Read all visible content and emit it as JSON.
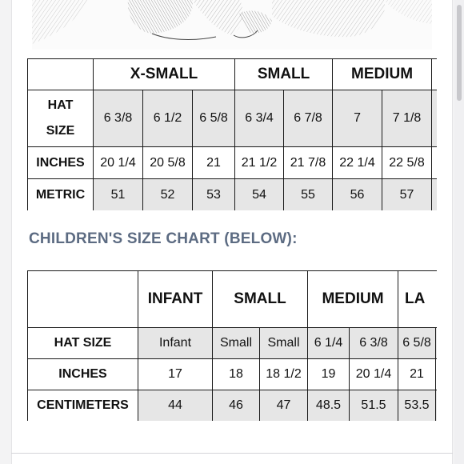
{
  "adult_chart": {
    "groups": [
      "X-SMALL",
      "SMALL",
      "MEDIUM"
    ],
    "row_labels": {
      "hat_size_line1": "HAT",
      "hat_size_line2": "SIZE",
      "inches": "INCHES",
      "metric": "METRIC"
    },
    "hat_size": [
      "6 3/8",
      "6 1/2",
      "6 5/8",
      "6 3/4",
      "6 7/8",
      "7",
      "7 1/8"
    ],
    "inches": [
      "20 1/4",
      "20 5/8",
      "21",
      "21 1/2",
      "21 7/8",
      "22 1/4",
      "22 5/8"
    ],
    "metric": [
      "51",
      "52",
      "53",
      "54",
      "55",
      "56",
      "57"
    ]
  },
  "children_heading": "CHILDREN'S SIZE CHART (BELOW):",
  "children_chart": {
    "groups": [
      "INFANT",
      "SMALL",
      "MEDIUM",
      "LA"
    ],
    "row_labels": {
      "hat_size": "HAT SIZE",
      "inches": "INCHES",
      "centimeters": "CENTIMETERS"
    },
    "hat_size": [
      "Infant",
      "Small",
      "Small",
      "6 1/4",
      "6 3/8",
      "6 5/8"
    ],
    "inches": [
      "17",
      "18",
      "18 1/2",
      "19",
      "20 1/4",
      "21"
    ],
    "centimeters": [
      "44",
      "46",
      "47",
      "48.5",
      "51.5",
      "53.5"
    ]
  }
}
